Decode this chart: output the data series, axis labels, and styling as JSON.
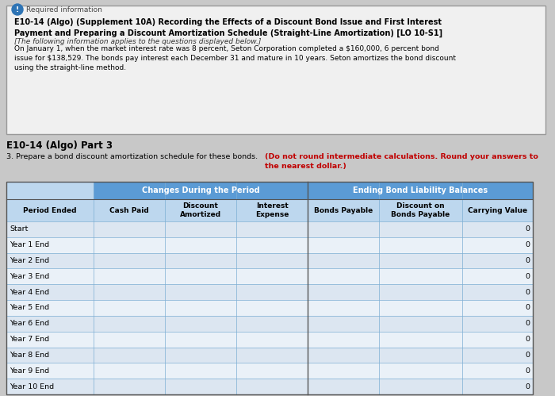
{
  "required_info_label": "Required information",
  "title_bold": "E10-14 (Algo) (Supplement 10A) Recording the Effects of a Discount Bond Issue and First Interest\nPayment and Preparing a Discount Amortization Schedule (Straight-Line Amortization) [LO 10-S1]",
  "italic_text": "[The following information applies to the questions displayed below.]",
  "body_text": "On January 1, when the market interest rate was 8 percent, Seton Corporation completed a $160,000, 6 percent bond\nissue for $138,529. The bonds pay interest each December 31 and mature in 10 years. Seton amortizes the bond discount\nusing the straight-line method.",
  "part_label": "E10-14 (Algo) Part 3",
  "question_text_normal": "3. Prepare a bond discount amortization schedule for these bonds. ",
  "question_text_bold_red": "(Do not round intermediate calculations. Round your answers to\nthe nearest dollar.)",
  "header_group1": "Changes During the Period",
  "header_group2": "Ending Bond Liability Balances",
  "col_headers": [
    "Period Ended",
    "Cash Paid",
    "Discount\nAmortized",
    "Interest\nExpense",
    "Bonds Payable",
    "Discount on\nBonds Payable",
    "Carrying Value"
  ],
  "row_labels": [
    "Start",
    "Year 1 End",
    "Year 2 End",
    "Year 3 End",
    "Year 4 End",
    "Year 5 End",
    "Year 6 End",
    "Year 7 End",
    "Year 8 End",
    "Year 9 End",
    "Year 10 End"
  ],
  "carrying_values": [
    0,
    0,
    0,
    0,
    0,
    0,
    0,
    0,
    0,
    0,
    0
  ],
  "header_bg": "#5b9bd5",
  "subheader_bg": "#bdd7ee",
  "row_bg_even": "#dce6f1",
  "row_bg_odd": "#eaf1f8",
  "box_bg": "#f0f0f0",
  "box_border": "#999999",
  "bg_color": "#c8c8c8",
  "info_icon_color": "#1f4e79",
  "icon_bg": "#2e74b5"
}
